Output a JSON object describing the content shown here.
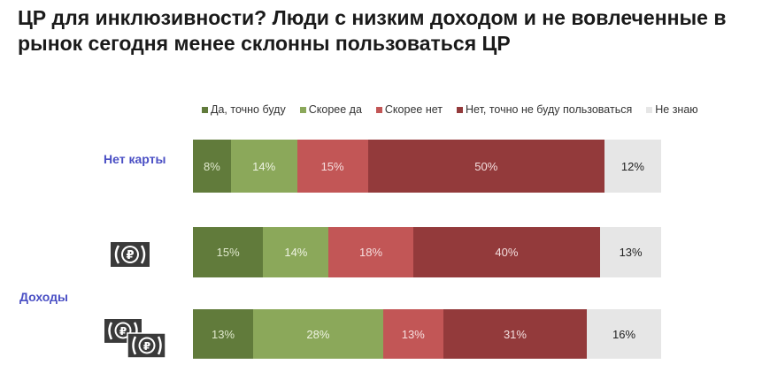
{
  "title": "ЦР для инклюзивности? Люди с низким доходом и не вовлеченные в рынок сегодня менее склонны пользоваться ЦР",
  "chart_data": {
    "type": "bar",
    "orientation": "horizontal-stacked-100",
    "title": "ЦР для инклюзивности? Люди с низким доходом и не вовлеченные в рынок сегодня менее склонны пользоваться ЦР",
    "legend_position": "top",
    "series_names": [
      "Да, точно буду",
      "Скорее да",
      "Скорее нет",
      "Нет, точно не буду пользоваться",
      "Не знаю"
    ],
    "colors": [
      "#617b3b",
      "#8ba85a",
      "#c25656",
      "#933a3b",
      "#e6e6e6"
    ],
    "label_colors": [
      "#dfe8cc",
      "#eef3e2",
      "#f6dede",
      "#f3dede",
      "#222222"
    ],
    "group_label": "Доходы",
    "rows": [
      {
        "label": "Нет карты",
        "icon": "",
        "values": [
          8,
          14,
          15,
          50,
          12
        ]
      },
      {
        "label": "",
        "icon": "single-ruble-banknote-icon",
        "values": [
          15,
          14,
          18,
          40,
          13
        ]
      },
      {
        "label": "",
        "icon": "double-ruble-banknote-icon",
        "values": [
          13,
          28,
          13,
          31,
          16
        ]
      }
    ]
  }
}
